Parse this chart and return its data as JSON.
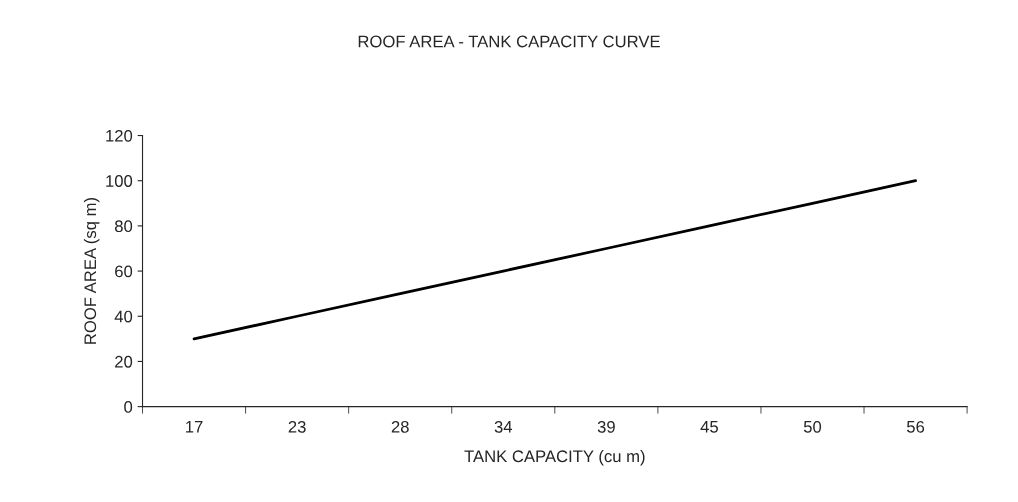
{
  "chart_data": {
    "type": "line",
    "title": "ROOF AREA - TANK CAPACITY CURVE",
    "xlabel": "TANK CAPACITY (cu m)",
    "ylabel": "ROOF AREA (sq m)",
    "categories": [
      "17",
      "23",
      "28",
      "34",
      "39",
      "45",
      "50",
      "56"
    ],
    "series": [
      {
        "color": "#000000",
        "values": [
          30,
          40,
          50,
          60,
          70,
          80,
          90,
          100
        ]
      }
    ],
    "ylim": [
      0,
      120
    ],
    "yticks": [
      0,
      20,
      40,
      60,
      80,
      100,
      120
    ],
    "grid": false,
    "legend": false,
    "marker": "none",
    "line_style": "solid"
  }
}
